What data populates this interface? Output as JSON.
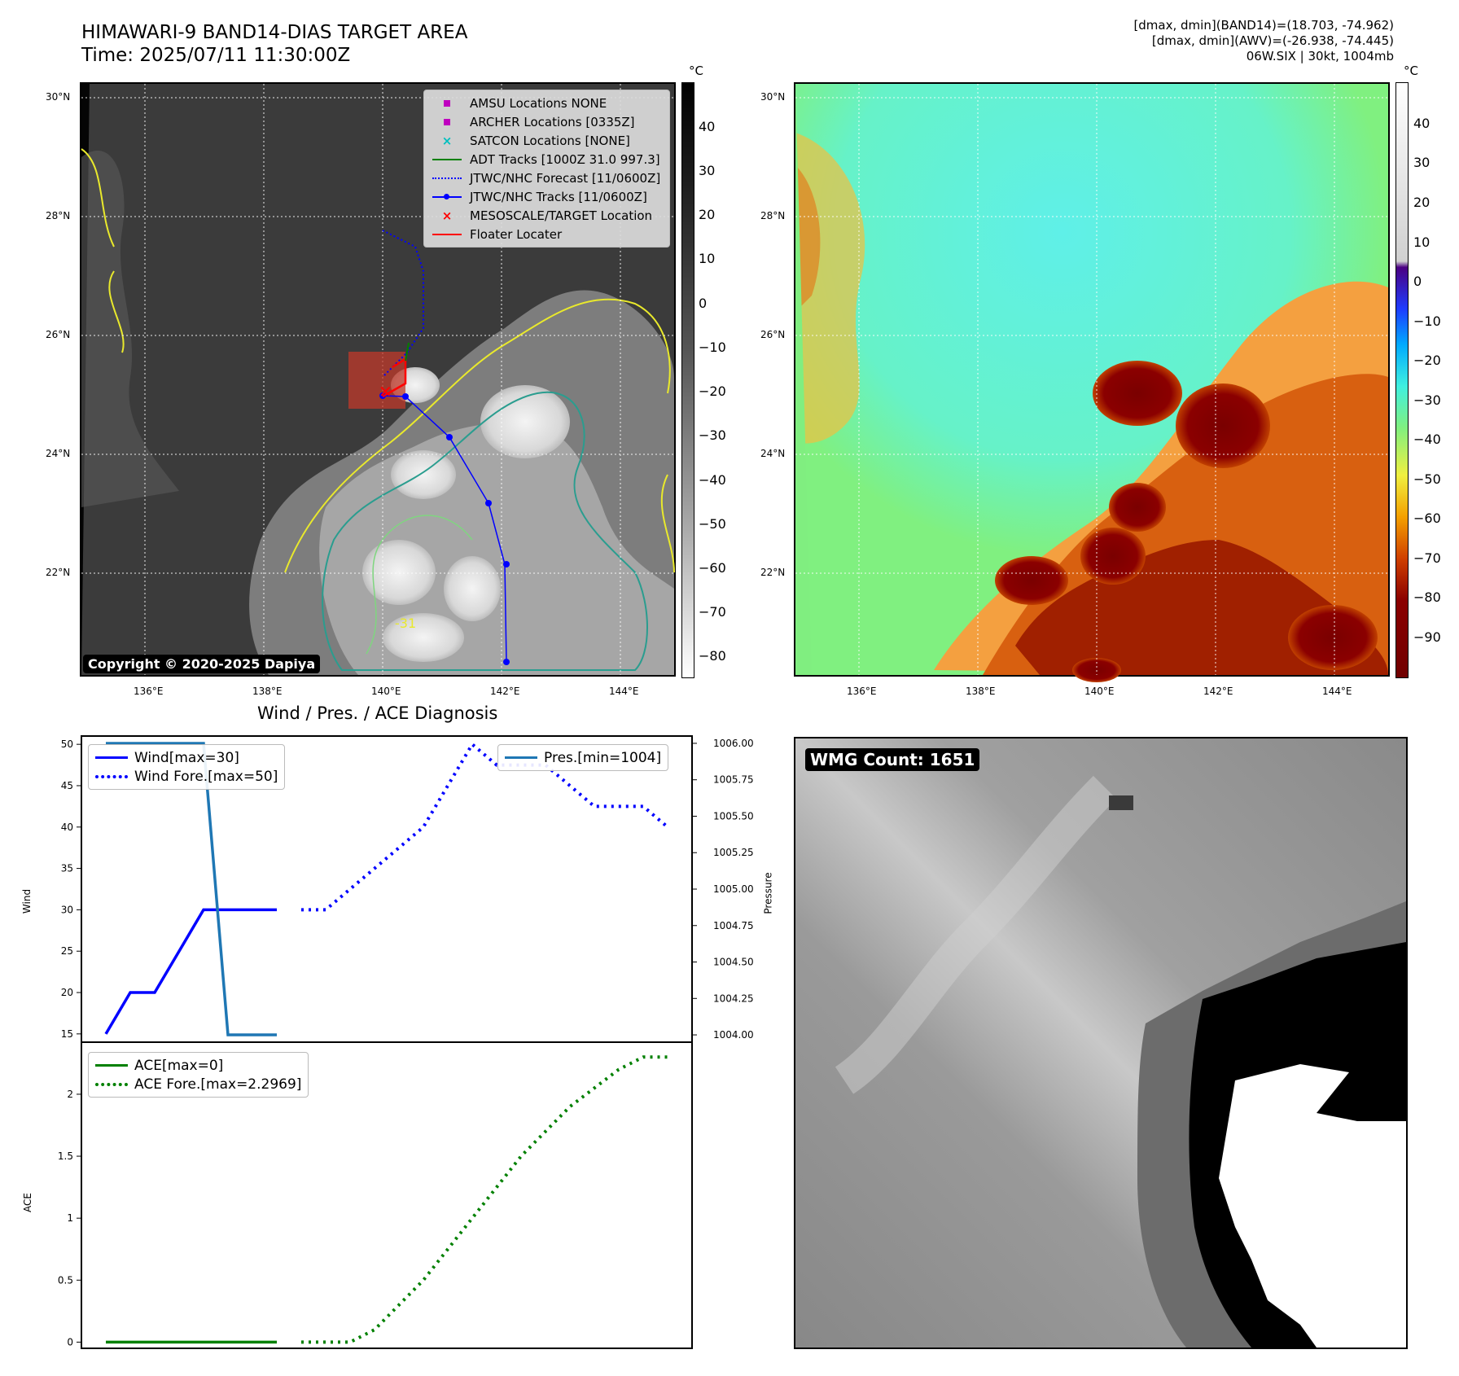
{
  "header": {
    "title_line1": "HIMAWARI-9 BAND14-DIAS TARGET AREA",
    "title_line2": "Time: 2025/07/11 11:30:00Z",
    "info_line1": "[dmax, dmin](BAND14)=(18.703, -74.962)",
    "info_line2": "[dmax, dmin](AWV)=(-26.938, -74.445)",
    "info_line3": "06W.SIX | 30kt, 1004mb"
  },
  "map": {
    "lat_labels": [
      "30°N",
      "28°N",
      "26°N",
      "24°N",
      "22°N"
    ],
    "lon_labels": [
      "136°E",
      "138°E",
      "140°E",
      "142°E",
      "144°E"
    ],
    "copyright": "Copyright © 2020-2025 Dapiya",
    "contour_label": "-31",
    "legend": [
      {
        "label": "AMSU Locations NONE",
        "color": "#bf00bf",
        "marker": "square"
      },
      {
        "label": "ARCHER Locations [0335Z]",
        "color": "#bf00bf",
        "marker": "square"
      },
      {
        "label": "SATCON Locations [NONE]",
        "color": "#00bfbf",
        "marker": "x"
      },
      {
        "label": "ADT Tracks [1000Z 31.0 997.3]",
        "color": "#008000",
        "marker": "line"
      },
      {
        "label": "JTWC/NHC Forecast [11/0600Z]",
        "color": "#0000ff",
        "marker": "dotted"
      },
      {
        "label": "JTWC/NHC Tracks [11/0600Z]",
        "color": "#0000ff",
        "marker": "line-dot"
      },
      {
        "label": "MESOSCALE/TARGET Location",
        "color": "#ff0000",
        "marker": "x"
      },
      {
        "label": "Floater Locater",
        "color": "#ff0000",
        "marker": "line"
      }
    ],
    "cbar_gray": {
      "unit": "°C",
      "ticks": [
        "40",
        "30",
        "20",
        "10",
        "0",
        "−10",
        "−20",
        "−30",
        "−40",
        "−50",
        "−60",
        "−70",
        "−80"
      ]
    },
    "cbar_color": {
      "unit": "°C",
      "ticks": [
        "40",
        "30",
        "20",
        "10",
        "0",
        "−10",
        "−20",
        "−30",
        "−40",
        "−50",
        "−60",
        "−70",
        "−80",
        "−90"
      ]
    }
  },
  "diag": {
    "title": "Wind / Pres. / ACE Diagnosis",
    "wind_ylabel": "Wind",
    "pres_ylabel": "Pressure",
    "ace_ylabel": "ACE",
    "wind_legend": [
      "Wind[max=30]",
      "Wind Fore.[max=50]"
    ],
    "pres_legend": [
      "Pres.[min=1004]"
    ],
    "ace_legend": [
      "ACE[max=0]",
      "ACE Fore.[max=2.2969]"
    ]
  },
  "wmg": {
    "count_label": "WMG Count: 1651"
  },
  "chart_data": [
    {
      "type": "line",
      "title": "Wind / Pres. / ACE Diagnosis",
      "ylabel": "Wind",
      "ylim": [
        14,
        51
      ],
      "yticks": [
        15,
        20,
        25,
        30,
        35,
        40,
        45,
        50
      ],
      "series": [
        {
          "name": "Wind[max=30]",
          "x": [
            0,
            1,
            2,
            3,
            4,
            5,
            6,
            7
          ],
          "values": [
            15,
            20,
            20,
            25,
            30,
            30,
            30,
            30
          ]
        },
        {
          "name": "Wind Fore.[max=50]",
          "x": [
            8,
            9,
            10,
            11,
            12,
            13,
            14,
            15,
            16,
            17,
            18,
            19,
            20,
            21,
            22,
            23
          ],
          "values": [
            30,
            30,
            32.5,
            35,
            37.5,
            40,
            45,
            50,
            47.5,
            47.5,
            47.5,
            45,
            42.5,
            42.5,
            42.5,
            40
          ]
        }
      ]
    },
    {
      "type": "line",
      "ylabel": "Pressure",
      "ylim": [
        1003.95,
        1006.05
      ],
      "yticks": [
        1004.0,
        1004.25,
        1004.5,
        1004.75,
        1005.0,
        1005.25,
        1005.5,
        1005.75,
        1006.0
      ],
      "series": [
        {
          "name": "Pres.[min=1004]",
          "x": [
            0,
            1,
            2,
            3,
            4,
            5,
            6,
            7
          ],
          "values": [
            1006,
            1006,
            1006,
            1006,
            1006,
            1004,
            1004,
            1004
          ]
        }
      ]
    },
    {
      "type": "line",
      "ylabel": "ACE",
      "ylim": [
        -0.05,
        2.42
      ],
      "yticks": [
        0.0,
        0.5,
        1.0,
        1.5,
        2.0
      ],
      "series": [
        {
          "name": "ACE[max=0]",
          "x": [
            0,
            1,
            2,
            3,
            4,
            5,
            6,
            7
          ],
          "values": [
            0,
            0,
            0,
            0,
            0,
            0,
            0,
            0
          ]
        },
        {
          "name": "ACE Fore.[max=2.2969]",
          "x": [
            8,
            9,
            10,
            11,
            12,
            13,
            14,
            15,
            16,
            17,
            18,
            19,
            20,
            21,
            22,
            23
          ],
          "values": [
            0,
            0,
            0,
            0.1,
            0.3,
            0.5,
            0.75,
            1.0,
            1.25,
            1.5,
            1.7,
            1.9,
            2.05,
            2.2,
            2.3,
            2.3
          ]
        }
      ]
    }
  ]
}
